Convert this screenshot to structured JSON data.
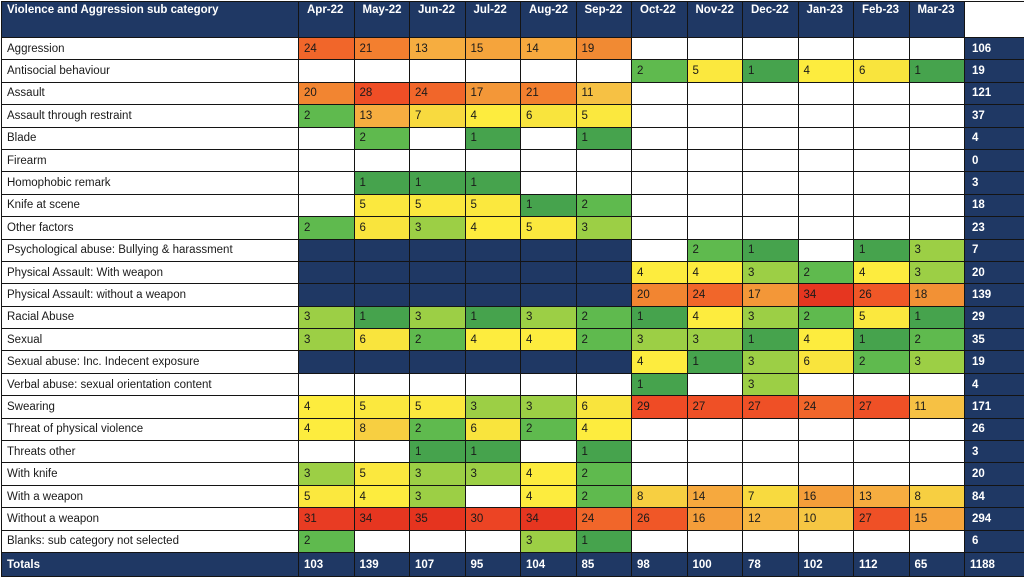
{
  "colors": {
    "navy": "#1f3864",
    "header_text": "#ffffff",
    "grid_border": "#141414",
    "empty_cell": "#ffffff"
  },
  "chart_data": {
    "type": "heatmap",
    "title": "Violence and Aggression sub category",
    "legend_position": "none",
    "grid": true,
    "columns": [
      "Apr-22",
      "May-22",
      "Jun-22",
      "Jul-22",
      "Aug-22",
      "Sep-22",
      "Oct-22",
      "Nov-22",
      "Dec-22",
      "Jan-23",
      "Feb-23",
      "Mar-23"
    ],
    "totals_column_header": "",
    "totals_label": "Totals",
    "rows": [
      {
        "label": "Aggression",
        "values": [
          24,
          21,
          13,
          15,
          14,
          19,
          null,
          null,
          null,
          null,
          null,
          null
        ],
        "total": 106,
        "no_data_columns": []
      },
      {
        "label": "Antisocial behaviour",
        "values": [
          null,
          null,
          null,
          null,
          null,
          null,
          2,
          5,
          1,
          4,
          6,
          1
        ],
        "total": 19,
        "no_data_columns": []
      },
      {
        "label": "Assault",
        "values": [
          20,
          28,
          24,
          17,
          21,
          11,
          null,
          null,
          null,
          null,
          null,
          null
        ],
        "total": 121,
        "no_data_columns": []
      },
      {
        "label": "Assault through restraint",
        "values": [
          2,
          13,
          7,
          4,
          6,
          5,
          null,
          null,
          null,
          null,
          null,
          null
        ],
        "total": 37,
        "no_data_columns": []
      },
      {
        "label": "Blade",
        "values": [
          null,
          2,
          null,
          1,
          null,
          1,
          null,
          null,
          null,
          null,
          null,
          null
        ],
        "total": 4,
        "no_data_columns": []
      },
      {
        "label": "Firearm",
        "values": [
          null,
          null,
          null,
          null,
          null,
          null,
          null,
          null,
          null,
          null,
          null,
          null
        ],
        "total": 0,
        "no_data_columns": []
      },
      {
        "label": "Homophobic remark",
        "values": [
          null,
          1,
          1,
          1,
          null,
          null,
          null,
          null,
          null,
          null,
          null,
          null
        ],
        "total": 3,
        "no_data_columns": []
      },
      {
        "label": "Knife at scene",
        "values": [
          null,
          5,
          5,
          5,
          1,
          2,
          null,
          null,
          null,
          null,
          null,
          null
        ],
        "total": 18,
        "no_data_columns": []
      },
      {
        "label": "Other factors",
        "values": [
          2,
          6,
          3,
          4,
          5,
          3,
          null,
          null,
          null,
          null,
          null,
          null
        ],
        "total": 23,
        "no_data_columns": []
      },
      {
        "label": "Psychological abuse: Bullying & harassment",
        "values": [
          null,
          null,
          null,
          null,
          null,
          null,
          null,
          2,
          1,
          null,
          1,
          3
        ],
        "total": 7,
        "no_data_columns": [
          0,
          1,
          2,
          3,
          4,
          5
        ]
      },
      {
        "label": "Physical Assault: With weapon",
        "values": [
          null,
          null,
          null,
          null,
          null,
          null,
          4,
          4,
          3,
          2,
          4,
          3
        ],
        "total": 20,
        "no_data_columns": [
          0,
          1,
          2,
          3,
          4,
          5
        ]
      },
      {
        "label": "Physical Assault: without a weapon",
        "values": [
          null,
          null,
          null,
          null,
          null,
          null,
          20,
          24,
          17,
          34,
          26,
          18
        ],
        "total": 139,
        "no_data_columns": [
          0,
          1,
          2,
          3,
          4,
          5
        ]
      },
      {
        "label": "Racial Abuse",
        "values": [
          3,
          1,
          3,
          1,
          3,
          2,
          1,
          4,
          3,
          2,
          5,
          1
        ],
        "total": 29,
        "no_data_columns": []
      },
      {
        "label": "Sexual",
        "values": [
          3,
          6,
          2,
          4,
          4,
          2,
          3,
          3,
          1,
          4,
          1,
          2
        ],
        "total": 35,
        "no_data_columns": []
      },
      {
        "label": "Sexual abuse: Inc. Indecent exposure",
        "values": [
          null,
          null,
          null,
          null,
          null,
          null,
          4,
          1,
          3,
          6,
          2,
          3
        ],
        "total": 19,
        "no_data_columns": [
          0,
          1,
          2,
          3,
          4,
          5
        ]
      },
      {
        "label": "Verbal abuse: sexual orientation content",
        "values": [
          null,
          null,
          null,
          null,
          null,
          null,
          1,
          null,
          3,
          null,
          null,
          null
        ],
        "total": 4,
        "no_data_columns": []
      },
      {
        "label": "Swearing",
        "values": [
          4,
          5,
          5,
          3,
          3,
          6,
          29,
          27,
          27,
          24,
          27,
          11
        ],
        "total": 171,
        "no_data_columns": []
      },
      {
        "label": "Threat of physical violence",
        "values": [
          4,
          8,
          2,
          6,
          2,
          4,
          null,
          null,
          null,
          null,
          null,
          null
        ],
        "total": 26,
        "no_data_columns": []
      },
      {
        "label": "Threats other",
        "values": [
          null,
          null,
          1,
          1,
          null,
          1,
          null,
          null,
          null,
          null,
          null,
          null
        ],
        "total": 3,
        "no_data_columns": []
      },
      {
        "label": "With knife",
        "values": [
          3,
          5,
          3,
          3,
          4,
          2,
          null,
          null,
          null,
          null,
          null,
          null
        ],
        "total": 20,
        "no_data_columns": []
      },
      {
        "label": "With a weapon",
        "values": [
          5,
          4,
          3,
          null,
          4,
          2,
          8,
          14,
          7,
          16,
          13,
          8
        ],
        "total": 84,
        "no_data_columns": []
      },
      {
        "label": "Without a weapon",
        "values": [
          31,
          34,
          35,
          30,
          34,
          24,
          26,
          16,
          12,
          10,
          27,
          15
        ],
        "total": 294,
        "no_data_columns": []
      },
      {
        "label": "Blanks: sub category not selected",
        "values": [
          2,
          null,
          null,
          null,
          3,
          1,
          null,
          null,
          null,
          null,
          null,
          null
        ],
        "total": 6,
        "no_data_columns": []
      }
    ],
    "column_totals": [
      103,
      139,
      107,
      95,
      104,
      85,
      98,
      100,
      78,
      102,
      112,
      65
    ],
    "grand_total": 1188,
    "color_scale": {
      "description": "green-yellow-red conditional formatting, low to high",
      "no_data_color": "#1f3864",
      "empty_color": "#ffffff",
      "stops": [
        [
          1,
          "#46a34d"
        ],
        [
          2,
          "#5fba4e"
        ],
        [
          3,
          "#9ccf45"
        ],
        [
          4,
          "#fdec3e"
        ],
        [
          6,
          "#f9e43d"
        ],
        [
          8,
          "#f7cf41"
        ],
        [
          11,
          "#f6c144"
        ],
        [
          13,
          "#f6ad40"
        ],
        [
          15,
          "#f5a43c"
        ],
        [
          19,
          "#f18a33"
        ],
        [
          21,
          "#f37f2f"
        ],
        [
          24,
          "#f1662a"
        ],
        [
          27,
          "#ef5026"
        ],
        [
          29,
          "#ef4b25"
        ],
        [
          31,
          "#e83c23"
        ],
        [
          35,
          "#e5341f"
        ]
      ]
    }
  }
}
